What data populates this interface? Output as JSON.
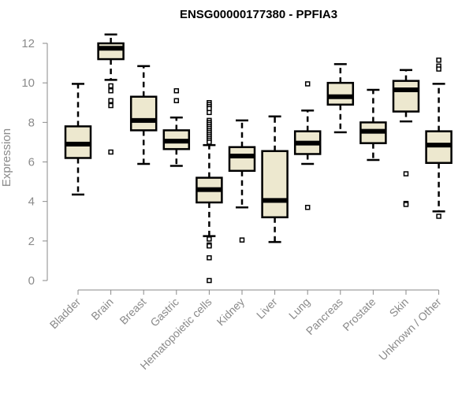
{
  "chart_data": {
    "type": "boxplot",
    "title": "ENSG00000177380 - PPFIA3",
    "xlabel": "",
    "ylabel": "Expression",
    "ylim": [
      0,
      12
    ],
    "yticks": [
      0,
      2,
      4,
      6,
      8,
      10,
      12
    ],
    "box_fill": "#ede8cf",
    "categories": [
      "Bladder",
      "Brain",
      "Breast",
      "Gastric",
      "Hematopoietic cells",
      "Kidney",
      "Liver",
      "Lung",
      "Pancreas",
      "Prostate",
      "Skin",
      "Unknown / Other"
    ],
    "boxes": [
      {
        "min": 4.35,
        "q1": 6.2,
        "median": 6.9,
        "q3": 7.8,
        "max": 9.95,
        "outliers": []
      },
      {
        "min": 10.15,
        "q1": 11.2,
        "median": 11.75,
        "q3": 12.0,
        "max": 12.45,
        "outliers": [
          9.85,
          9.6,
          9.1,
          8.85,
          6.5
        ]
      },
      {
        "min": 5.9,
        "q1": 7.6,
        "median": 8.1,
        "q3": 9.3,
        "max": 10.85,
        "outliers": []
      },
      {
        "min": 5.8,
        "q1": 6.65,
        "median": 7.05,
        "q3": 7.6,
        "max": 8.25,
        "outliers": [
          9.6,
          9.1
        ]
      },
      {
        "min": 2.25,
        "q1": 3.95,
        "median": 4.6,
        "q3": 5.2,
        "max": 6.85,
        "outliers": [
          9.0,
          8.9,
          8.8,
          8.7,
          8.5,
          8.1,
          8.0,
          7.9,
          7.8,
          7.7,
          7.6,
          7.5,
          7.4,
          7.3,
          7.2,
          7.1,
          7.0,
          2.1,
          1.8,
          1.75,
          1.15,
          0.0
        ]
      },
      {
        "min": 3.7,
        "q1": 5.55,
        "median": 6.3,
        "q3": 6.75,
        "max": 8.1,
        "outliers": [
          2.05
        ]
      },
      {
        "min": 1.95,
        "q1": 3.2,
        "median": 4.05,
        "q3": 6.55,
        "max": 8.3,
        "outliers": []
      },
      {
        "min": 5.9,
        "q1": 6.4,
        "median": 6.95,
        "q3": 7.55,
        "max": 8.6,
        "outliers": [
          9.95,
          3.7
        ]
      },
      {
        "min": 7.5,
        "q1": 8.9,
        "median": 9.3,
        "q3": 10.0,
        "max": 10.95,
        "outliers": []
      },
      {
        "min": 6.1,
        "q1": 6.95,
        "median": 7.55,
        "q3": 8.0,
        "max": 9.65,
        "outliers": []
      },
      {
        "min": 8.05,
        "q1": 8.55,
        "median": 9.65,
        "q3": 10.1,
        "max": 10.65,
        "outliers": [
          5.4,
          3.9,
          3.85
        ]
      },
      {
        "min": 3.5,
        "q1": 5.95,
        "median": 6.85,
        "q3": 7.55,
        "max": 9.95,
        "outliers": [
          11.15,
          10.85,
          10.7,
          3.25
        ]
      }
    ]
  }
}
